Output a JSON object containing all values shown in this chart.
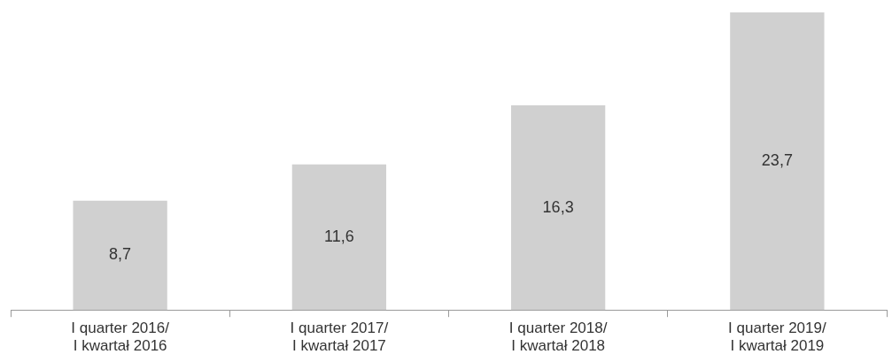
{
  "chart_data": {
    "type": "bar",
    "categories": [
      "I quarter 2016/\nI kwartał 2016",
      "I quarter 2017/\nI kwartał 2017",
      "I quarter 2018/\nI kwartał 2018",
      "I quarter 2019/\nI kwartał 2019"
    ],
    "values": [
      8.7,
      11.6,
      16.3,
      23.7
    ],
    "value_labels": [
      "8,7",
      "11,6",
      "16,3",
      "23,7"
    ],
    "color": "#d0d0d0",
    "grid": false,
    "legend": false
  }
}
